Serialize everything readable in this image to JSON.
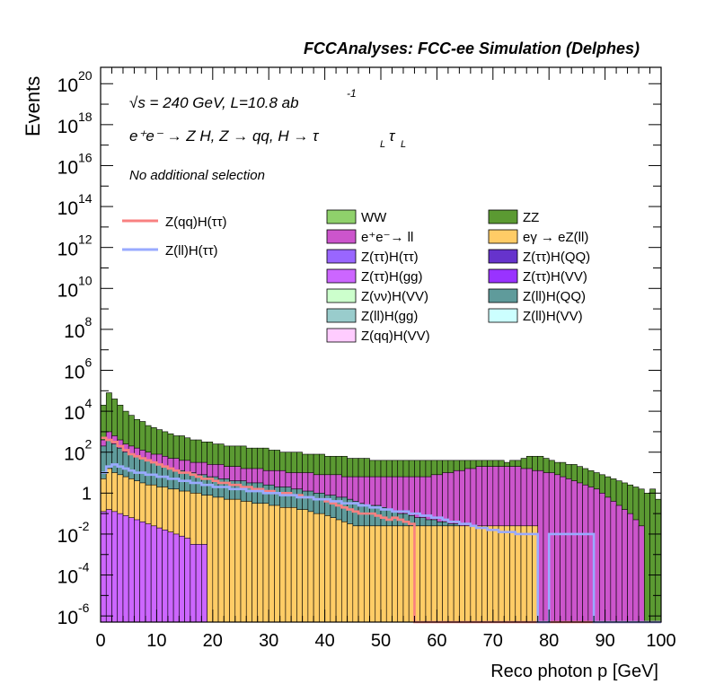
{
  "chart_data": {
    "type": "area",
    "title": "FCCAnalyses: FCC-ee Simulation (Delphes)",
    "annotations": [
      "√s = 240 GeV, L=10.8 ab",
      "-1",
      "e⁺e⁻ → Z H, Z → qq, H → τ",
      "L",
      "τ",
      "L",
      "No additional selection"
    ],
    "xlabel": "Reco photon p [GeV]",
    "ylabel": "Events",
    "xlim": [
      0,
      100
    ],
    "ylim_log10": [
      -6.3,
      20.8
    ],
    "y_scale": "log",
    "x_ticks": [
      0,
      10,
      20,
      30,
      40,
      50,
      60,
      70,
      80,
      90,
      100
    ],
    "y_ticks": [
      {
        "base": "10",
        "exp": "20",
        "v": 20
      },
      {
        "base": "10",
        "exp": "18",
        "v": 18
      },
      {
        "base": "10",
        "exp": "16",
        "v": 16
      },
      {
        "base": "10",
        "exp": "14",
        "v": 14
      },
      {
        "base": "10",
        "exp": "12",
        "v": 12
      },
      {
        "base": "10",
        "exp": "10",
        "v": 10
      },
      {
        "base": "10",
        "exp": "8",
        "v": 8
      },
      {
        "base": "10",
        "exp": "6",
        "v": 6
      },
      {
        "base": "10",
        "exp": "4",
        "v": 4
      },
      {
        "base": "10",
        "exp": "2",
        "v": 2
      },
      {
        "base": "1",
        "exp": "",
        "v": 0
      },
      {
        "base": "10",
        "exp": "-2",
        "v": -2
      },
      {
        "base": "10",
        "exp": "-4",
        "v": -4
      },
      {
        "base": "10",
        "exp": "-6",
        "v": -6
      }
    ],
    "bin_width": 1,
    "stack_log10_tops": {
      "ZZ": [
        4.3,
        4.9,
        4.6,
        4.3,
        4.0,
        3.8,
        3.6,
        3.5,
        3.3,
        3.2,
        3.1,
        3.0,
        2.9,
        2.8,
        2.8,
        2.7,
        2.6,
        2.6,
        2.5,
        2.5,
        2.4,
        2.4,
        2.3,
        2.3,
        2.3,
        2.3,
        2.2,
        2.2,
        2.2,
        2.2,
        2.1,
        2.1,
        2.0,
        2.0,
        2.0,
        2.0,
        1.9,
        1.9,
        1.9,
        1.9,
        1.8,
        1.8,
        1.8,
        1.8,
        1.7,
        1.7,
        1.7,
        1.7,
        1.6,
        1.6,
        1.6,
        1.6,
        1.6,
        1.6,
        1.6,
        1.6,
        1.6,
        1.6,
        1.6,
        1.6,
        1.6,
        1.6,
        1.6,
        1.6,
        1.6,
        1.6,
        1.6,
        1.6,
        1.6,
        1.6,
        1.6,
        1.6,
        1.5,
        1.6,
        1.6,
        1.7,
        1.8,
        1.8,
        1.8,
        1.7,
        1.6,
        1.5,
        1.5,
        1.4,
        1.4,
        1.3,
        1.2,
        1.1,
        1.0,
        0.9,
        0.8,
        0.7,
        0.6,
        0.5,
        0.4,
        0.3,
        0.2,
        0.0,
        0.2,
        -0.3
      ],
      "ee_ll": [
        2.6,
        3.0,
        2.8,
        2.6,
        2.4,
        2.3,
        2.2,
        2.1,
        2.0,
        1.9,
        1.9,
        1.8,
        1.7,
        1.7,
        1.6,
        1.6,
        1.5,
        1.5,
        1.5,
        1.4,
        1.4,
        1.4,
        1.3,
        1.3,
        1.3,
        1.2,
        1.2,
        1.2,
        1.2,
        1.1,
        1.1,
        1.1,
        1.1,
        1.0,
        1.0,
        1.0,
        1.0,
        1.0,
        0.9,
        0.9,
        0.9,
        0.9,
        0.9,
        0.8,
        0.8,
        0.8,
        0.8,
        0.8,
        0.8,
        0.8,
        0.8,
        0.8,
        0.8,
        0.8,
        0.8,
        0.8,
        0.8,
        0.8,
        0.8,
        0.9,
        0.9,
        1.0,
        1.0,
        1.1,
        1.1,
        1.2,
        1.2,
        1.3,
        1.3,
        1.3,
        1.3,
        1.3,
        1.3,
        1.3,
        1.3,
        1.2,
        1.2,
        1.1,
        1.1,
        1.0,
        1.0,
        0.9,
        0.8,
        0.7,
        0.6,
        0.5,
        0.4,
        0.3,
        0.2,
        0.0,
        -0.2,
        -0.4,
        -0.6,
        -0.8,
        -1.0,
        -1.3,
        -1.6,
        -6.3,
        -6.3,
        -6.3
      ],
      "ZllH": [
        2.3,
        2.6,
        2.4,
        2.2,
        2.0,
        1.9,
        1.8,
        1.7,
        1.6,
        1.5,
        1.4,
        1.3,
        1.2,
        1.1,
        1.1,
        1.0,
        1.0,
        0.9,
        0.9,
        0.8,
        0.8,
        0.7,
        0.7,
        0.6,
        0.6,
        0.6,
        0.5,
        0.5,
        0.5,
        0.4,
        0.4,
        0.3,
        0.3,
        0.3,
        0.2,
        0.2,
        0.1,
        0.1,
        0.0,
        0.0,
        -0.1,
        -0.1,
        -0.2,
        -0.2,
        -0.3,
        -0.4,
        -0.5,
        -0.6,
        -0.6,
        -0.6,
        -0.7,
        -0.8,
        -0.9,
        -1.0,
        -1.0,
        -1.1,
        -1.2,
        -1.2,
        -1.3,
        -1.3,
        -1.4,
        -1.4,
        -1.5,
        -1.5,
        -1.6,
        -1.6,
        -1.7,
        -1.8,
        -1.9,
        -2.0,
        -2.0,
        -2.0,
        -2.0,
        -2.0,
        -2.0,
        -2.0,
        -2.0,
        -2.0,
        -6.3,
        -6.3,
        -6.3,
        -6.3,
        -6.3,
        -6.3,
        -6.3,
        -6.3,
        -6.3,
        -6.3,
        -6.3,
        -6.3,
        -6.3,
        -6.3,
        -6.3,
        -6.3,
        -6.3,
        -6.3,
        -6.3,
        -6.3,
        -6.3,
        -6.3
      ],
      "other": [
        0.7,
        1.2,
        1.0,
        0.9,
        0.8,
        0.7,
        0.6,
        0.5,
        0.4,
        0.4,
        0.3,
        0.3,
        0.2,
        0.2,
        0.1,
        0.1,
        0.0,
        0.0,
        -0.1,
        -0.1,
        -0.2,
        -0.2,
        -0.3,
        -0.3,
        -0.3,
        -0.4,
        -0.4,
        -0.5,
        -0.5,
        -0.5,
        -0.6,
        -0.6,
        -0.7,
        -0.7,
        -0.7,
        -0.8,
        -0.8,
        -0.9,
        -1.0,
        -1.0,
        -1.1,
        -1.2,
        -1.3,
        -1.4,
        -1.5,
        -1.6,
        -1.6,
        -1.6,
        -1.6,
        -1.6,
        -1.6,
        -1.6,
        -1.6,
        -1.6,
        -1.6,
        -1.6,
        -1.6,
        -1.6,
        -1.6,
        -1.6,
        -1.6,
        -1.6,
        -1.6,
        -1.6,
        -1.6,
        -1.6,
        -1.6,
        -1.6,
        -1.6,
        -1.6,
        -1.6,
        -1.6,
        -1.6,
        -1.6,
        -1.6,
        -1.6,
        -1.6,
        -1.6,
        -6.3,
        -6.3,
        -6.3,
        -6.3,
        -6.3,
        -6.3,
        -6.3,
        -6.3,
        -6.3,
        -6.3,
        -6.3,
        -6.3,
        -6.3,
        -6.3,
        -6.3,
        -6.3,
        -6.3,
        -6.3,
        -6.3,
        -6.3,
        -6.3,
        -6.3
      ],
      "ZttH_gg": [
        -0.9,
        -0.8,
        -0.9,
        -1.0,
        -1.1,
        -1.2,
        -1.3,
        -1.4,
        -1.5,
        -1.6,
        -1.7,
        -1.8,
        -1.9,
        -2.0,
        -2.1,
        -2.2,
        -2.5,
        -2.5,
        -2.5,
        -6.3,
        -6.3,
        -6.3,
        -6.3,
        -6.3,
        -6.3,
        -6.3,
        -6.3,
        -6.3,
        -6.3,
        -6.3,
        -6.3,
        -6.3,
        -6.3,
        -6.3,
        -6.3,
        -6.3,
        -6.3,
        -6.3,
        -6.3,
        -6.3,
        -6.3,
        -6.3,
        -6.3,
        -6.3,
        -6.3,
        -6.3,
        -6.3,
        -6.3,
        -6.3,
        -6.3,
        -6.3,
        -6.3,
        -6.3,
        -6.3,
        -6.3,
        -6.3,
        -6.3,
        -6.3,
        -6.3,
        -6.3,
        -6.3,
        -6.3,
        -6.3,
        -6.3,
        -6.3,
        -6.3,
        -6.3,
        -6.3,
        -6.3,
        -6.3,
        -6.3,
        -6.3,
        -6.3,
        -6.3,
        -6.3,
        -6.3,
        -6.3,
        -6.3,
        -6.3,
        -6.3,
        -6.3,
        -6.3,
        -6.3,
        -6.3,
        -6.3,
        -6.3,
        -6.3,
        -6.3,
        -6.3,
        -6.3,
        -6.3,
        -6.3,
        -6.3,
        -6.3,
        -6.3,
        -6.3,
        -6.3,
        -6.3,
        -6.3,
        -6.3
      ]
    },
    "series": [
      {
        "name": "WW",
        "color": "#8fd16b"
      },
      {
        "name": "ZZ",
        "color": "#5b9a32"
      },
      {
        "name": "e⁺e⁻→ ll",
        "color": "#cc55cc"
      },
      {
        "name": "eγ → eZ(ll)",
        "color": "#ffcc66"
      },
      {
        "name": "Z(ττ)H(ττ)",
        "color": "#9966ff"
      },
      {
        "name": "Z(ττ)H(QQ)",
        "color": "#6633cc"
      },
      {
        "name": "Z(ττ)H(gg)",
        "color": "#cc66ff"
      },
      {
        "name": "Z(ττ)H(VV)",
        "color": "#9933ff"
      },
      {
        "name": "Z(νν)H(VV)",
        "color": "#ccffcc"
      },
      {
        "name": "Z(ll)H(QQ)",
        "color": "#5f9b9b"
      },
      {
        "name": "Z(ll)H(gg)",
        "color": "#99cccc"
      },
      {
        "name": "Z(ll)H(VV)",
        "color": "#ccffff"
      },
      {
        "name": "Z(qq)H(VV)",
        "color": "#ffccff"
      }
    ],
    "signal_lines": [
      {
        "name": "Z(qq)H(ττ)",
        "color": "#f88080",
        "log10": [
          2.7,
          2.6,
          2.5,
          2.3,
          2.1,
          1.9,
          1.8,
          1.7,
          1.6,
          1.5,
          1.4,
          1.3,
          1.2,
          1.1,
          1.0,
          1.0,
          0.9,
          0.8,
          0.7,
          0.7,
          0.6,
          0.5,
          0.5,
          0.4,
          0.4,
          0.3,
          0.3,
          0.2,
          0.2,
          0.1,
          0.1,
          0.0,
          0.0,
          0.0,
          -0.1,
          -0.1,
          -0.2,
          -0.2,
          -0.3,
          -0.3,
          -0.4,
          -0.5,
          -0.6,
          -0.7,
          -0.8,
          -0.9,
          -1.0,
          -1.0,
          -1.0,
          -1.1,
          -1.2,
          -1.3,
          -1.2,
          -1.3,
          -1.4,
          -1.5,
          -6.3,
          -6.3,
          -6.3,
          -6.3,
          -6.3,
          -6.3,
          -6.3,
          -6.3,
          -6.3,
          -6.3,
          -6.3,
          -6.3,
          -6.3,
          -6.3,
          -6.3,
          -6.3,
          -6.3,
          -6.3,
          -6.3,
          -6.3,
          -6.3,
          -6.3,
          -6.3,
          -6.3,
          -6.3,
          -6.3,
          -6.3,
          -6.3,
          -6.3,
          -6.3,
          -6.3,
          -6.3,
          -6.3,
          -6.3,
          -6.3,
          -6.3,
          -6.3,
          -6.3,
          -6.3,
          -6.3,
          -6.3,
          -6.3,
          -6.3,
          -6.3
        ]
      },
      {
        "name": "Z(ll)H(ττ)",
        "color": "#99aaff",
        "log10": [
          1.0,
          1.3,
          1.4,
          1.3,
          1.2,
          1.1,
          1.0,
          1.0,
          0.9,
          0.9,
          0.8,
          0.8,
          0.7,
          0.7,
          0.6,
          0.6,
          0.5,
          0.5,
          0.4,
          0.4,
          0.3,
          0.3,
          0.3,
          0.2,
          0.2,
          0.2,
          0.1,
          0.1,
          0.1,
          0.0,
          0.0,
          0.0,
          -0.1,
          -0.1,
          -0.1,
          -0.2,
          -0.2,
          -0.2,
          -0.3,
          -0.3,
          -0.3,
          -0.4,
          -0.4,
          -0.5,
          -0.5,
          -0.5,
          -0.6,
          -0.6,
          -0.7,
          -0.7,
          -0.8,
          -0.8,
          -0.9,
          -0.9,
          -0.9,
          -1.0,
          -1.0,
          -1.1,
          -1.1,
          -1.2,
          -1.2,
          -1.3,
          -1.4,
          -1.4,
          -1.5,
          -1.5,
          -1.6,
          -1.7,
          -1.7,
          -1.8,
          -1.8,
          -1.9,
          -1.9,
          -1.9,
          -2.0,
          -2.0,
          -2.0,
          -2.0,
          -6.3,
          -6.3,
          -2.0,
          -2.0,
          -2.0,
          -2.0,
          -2.0,
          -2.0,
          -2.0,
          -2.0,
          -6.3,
          -6.3,
          -6.3,
          -6.3,
          -6.3,
          -6.3,
          -6.3,
          -6.3,
          -6.3,
          -6.3,
          -6.3,
          -6.3
        ]
      }
    ]
  }
}
